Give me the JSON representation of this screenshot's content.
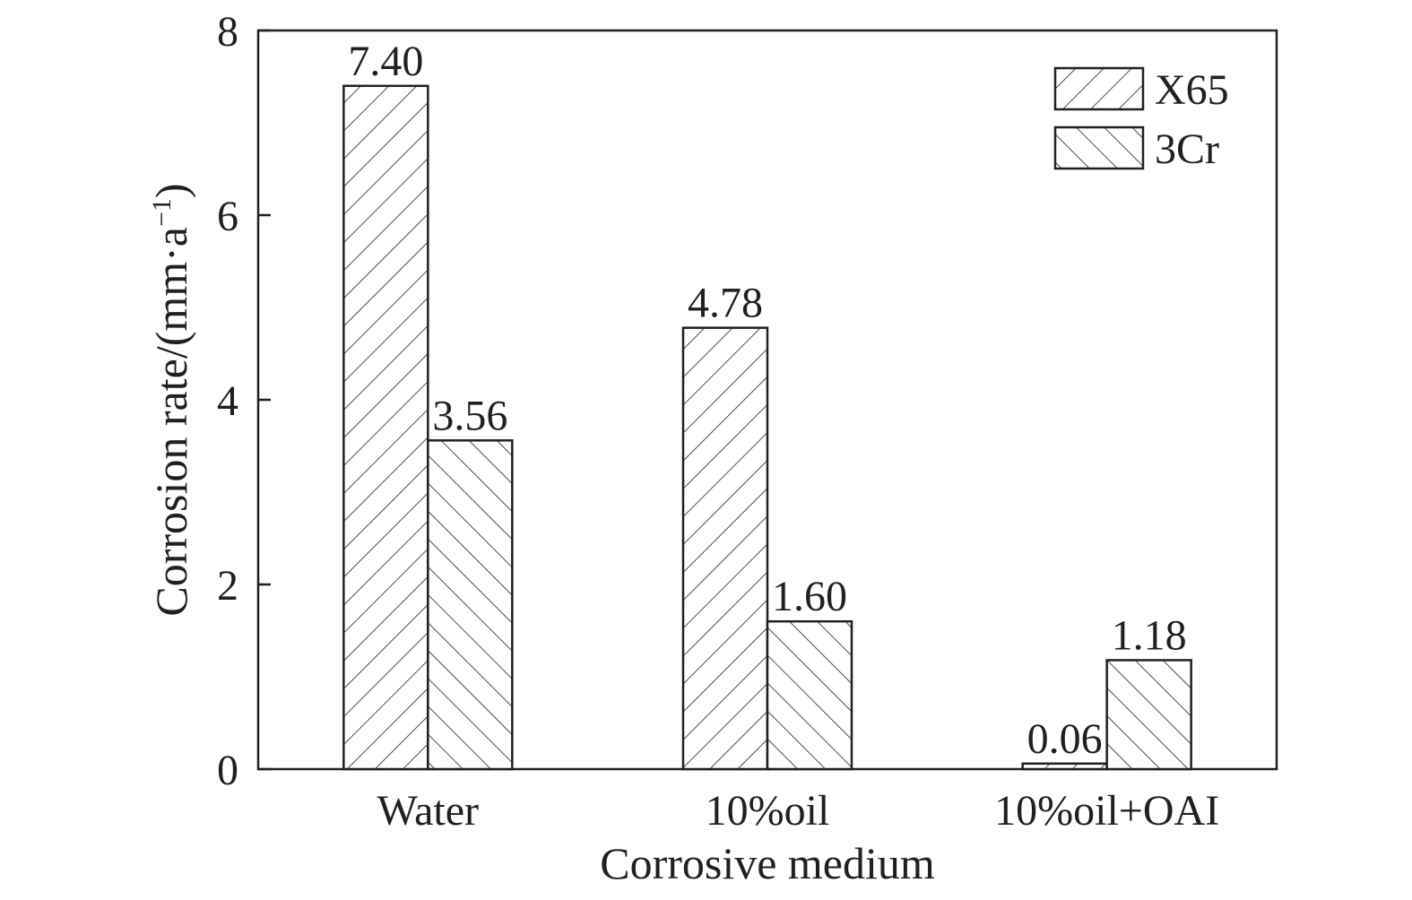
{
  "chart_data": {
    "type": "bar",
    "categories": [
      "Water",
      "10%oil",
      "10%oil+OAI"
    ],
    "series": [
      {
        "name": "X65",
        "values": [
          7.4,
          4.78,
          0.06
        ],
        "labels": [
          "7.40",
          "4.78",
          "0.06"
        ],
        "hatch": "forward-diagonal"
      },
      {
        "name": "3Cr",
        "values": [
          3.56,
          1.6,
          1.18
        ],
        "labels": [
          "3.56",
          "1.60",
          "1.18"
        ],
        "hatch": "back-diagonal"
      }
    ],
    "xlabel": "Corrosive medium",
    "ylabel": "Corrosion rate/(mm·a",
    "ylabel_sup": "−1",
    "ylabel_close": ")",
    "ylim": [
      0,
      8
    ],
    "yticks": [
      "0",
      "2",
      "4",
      "6",
      "8"
    ],
    "grid": false,
    "legend_position": "top-right",
    "colors": {
      "ink": "#231f20",
      "background": "#ffffff"
    }
  }
}
